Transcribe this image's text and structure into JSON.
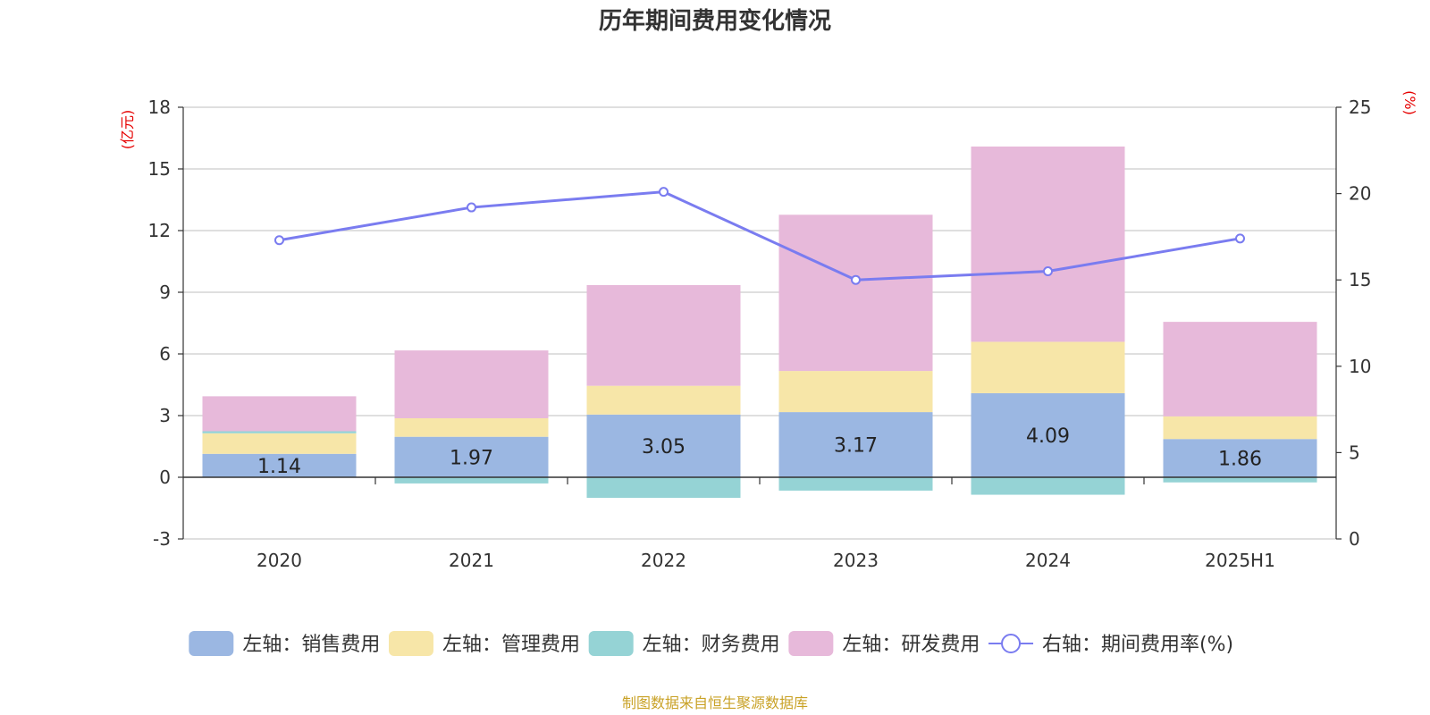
{
  "source_note": "制图数据来自恒生聚源数据库",
  "chart_data": {
    "type": "bar",
    "title": "历年期间费用变化情况",
    "categories": [
      "2020",
      "2021",
      "2022",
      "2023",
      "2024",
      "2025H1"
    ],
    "left_axis": {
      "unit": "(亿元)",
      "ylim": [
        -3,
        18
      ],
      "ticks": [
        "18",
        "15",
        "12",
        "9",
        "6",
        "3",
        "0",
        "-3"
      ]
    },
    "right_axis": {
      "unit": "(%)",
      "ylim": [
        0,
        25
      ],
      "ticks": [
        "25",
        "20",
        "15",
        "10",
        "5",
        "0"
      ]
    },
    "grid": true,
    "legend_position": "bottom",
    "series": [
      {
        "name": "左轴：销售费用",
        "type": "bar",
        "axis": "left",
        "color": "#9bb7e2",
        "values": [
          1.14,
          1.97,
          3.05,
          3.17,
          4.09,
          1.86
        ],
        "labels": [
          "1.14",
          "1.97",
          "3.05",
          "3.17",
          "4.09",
          "1.86"
        ]
      },
      {
        "name": "左轴：管理费用",
        "type": "bar",
        "axis": "left",
        "color": "#f7e6a8",
        "values": [
          1.0,
          0.9,
          1.4,
          2.0,
          2.5,
          1.1
        ]
      },
      {
        "name": "左轴：财务费用",
        "type": "bar",
        "axis": "left",
        "color": "#95d3d5",
        "values": [
          0.1,
          -0.3,
          -1.0,
          -0.65,
          -0.85,
          -0.25
        ]
      },
      {
        "name": "左轴：研发费用",
        "type": "bar",
        "axis": "left",
        "color": "#e7b9da",
        "values": [
          1.7,
          3.3,
          4.9,
          7.6,
          9.5,
          4.6
        ]
      },
      {
        "name": "右轴：期间费用率(%)",
        "type": "line",
        "axis": "right",
        "color": "#7a7cf0",
        "values": [
          17.3,
          19.2,
          20.1,
          15.0,
          15.5,
          17.4
        ]
      }
    ]
  }
}
